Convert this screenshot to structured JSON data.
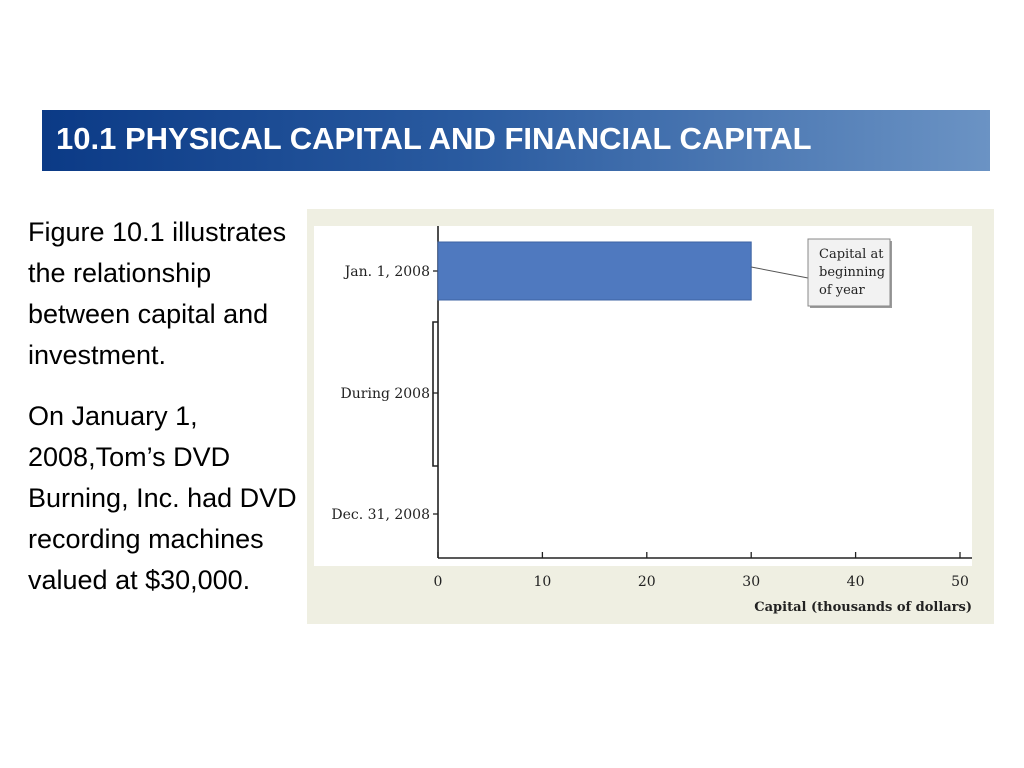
{
  "header": {
    "title": "10.1 PHYSICAL CAPITAL AND FINANCIAL CAPITAL"
  },
  "body": {
    "paragraph1": "Figure 10.1 illustrates the relationship between capital and investment.",
    "paragraph2": "On January 1, 2008,Tom’s DVD Burning, Inc. had DVD recording machines valued at $30,000."
  },
  "chart_data": {
    "type": "bar",
    "orientation": "horizontal",
    "categories": [
      "Jan. 1, 2008",
      "During 2008",
      "Dec. 31, 2008"
    ],
    "values": [
      30,
      null,
      null
    ],
    "xlabel": "Capital (thousands of dollars)",
    "ylabel": "",
    "xlim": [
      0,
      50
    ],
    "xticks": [
      0,
      10,
      20,
      30,
      40,
      50
    ],
    "grid": false,
    "bar_color": "#4f79bf",
    "annotation": {
      "text_lines": [
        "Capital at",
        "beginning",
        "of year"
      ],
      "points_to": "Jan. 1, 2008"
    }
  }
}
